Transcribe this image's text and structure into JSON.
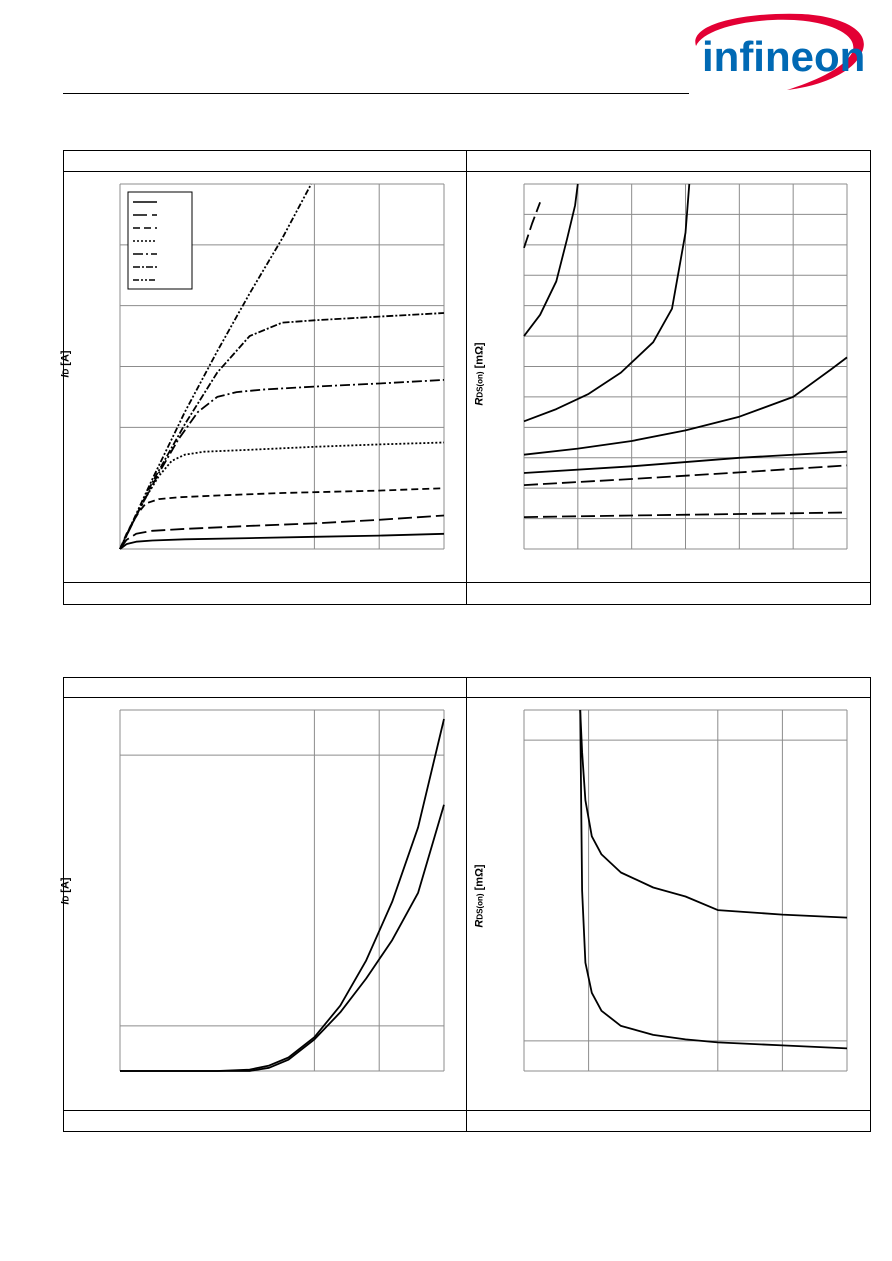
{
  "header": {
    "logo_text": "infineon",
    "brand_red": "#e30034",
    "brand_blue": "#0069b4"
  },
  "chart_data": [
    {
      "id": "top-left",
      "type": "line",
      "ylabel_symbol": "I",
      "ylabel_sub": "D",
      "ylabel_unit": "[A]",
      "xlim": [
        0,
        5
      ],
      "ylim": [
        0,
        6
      ],
      "x_grid": [
        0,
        3,
        4,
        5
      ],
      "y_grid": [
        0,
        2,
        3,
        4,
        5,
        6
      ],
      "legend": "top-left",
      "legend_entries": 7,
      "series": [
        {
          "dash": "solid",
          "x": [
            0,
            0.1,
            0.25,
            0.5,
            1,
            2,
            3,
            4,
            5
          ],
          "y": [
            0,
            0.08,
            0.12,
            0.14,
            0.16,
            0.18,
            0.2,
            0.22,
            0.25
          ]
        },
        {
          "dash": "long",
          "x": [
            0,
            0.1,
            0.25,
            0.5,
            1,
            2,
            3,
            4,
            5
          ],
          "y": [
            0,
            0.15,
            0.25,
            0.3,
            0.33,
            0.38,
            0.42,
            0.48,
            0.55
          ]
        },
        {
          "dash": "medium",
          "x": [
            0,
            0.1,
            0.2,
            0.3,
            0.4,
            0.6,
            0.9,
            1.5,
            2.5,
            4,
            5
          ],
          "y": [
            0,
            0.25,
            0.45,
            0.62,
            0.75,
            0.82,
            0.85,
            0.88,
            0.92,
            0.96,
            1.0
          ]
        },
        {
          "dash": "dotted",
          "x": [
            0,
            0.2,
            0.4,
            0.6,
            0.8,
            1.0,
            1.3,
            2,
            3,
            4,
            5
          ],
          "y": [
            0,
            0.45,
            0.85,
            1.2,
            1.45,
            1.55,
            1.6,
            1.63,
            1.68,
            1.72,
            1.75
          ]
        },
        {
          "dash": "dash-dot",
          "x": [
            0,
            0.3,
            0.6,
            0.9,
            1.2,
            1.5,
            1.8,
            2.2,
            3,
            4,
            5
          ],
          "y": [
            0,
            0.65,
            1.25,
            1.8,
            2.25,
            2.5,
            2.58,
            2.62,
            2.67,
            2.72,
            2.78
          ]
        },
        {
          "dash": "dash-dot-fine",
          "x": [
            0,
            0.5,
            1.0,
            1.5,
            2.0,
            2.5,
            3.0,
            4.0,
            5.0
          ],
          "y": [
            0,
            1.1,
            2.05,
            2.9,
            3.5,
            3.72,
            3.76,
            3.82,
            3.88
          ]
        },
        {
          "dash": "dash-dot-dot",
          "x": [
            0,
            0.5,
            1.0,
            1.5,
            2.0,
            2.5,
            2.95
          ],
          "y": [
            0,
            1.15,
            2.25,
            3.25,
            4.2,
            5.1,
            6.0
          ]
        }
      ]
    },
    {
      "id": "top-right",
      "type": "line",
      "ylabel_symbol": "R",
      "ylabel_sub": "DS(on)",
      "ylabel_unit": "[mΩ]",
      "xlim": [
        0,
        6
      ],
      "ylim": [
        0,
        12
      ],
      "x_grid": [
        0,
        1,
        2,
        3,
        4,
        5,
        6
      ],
      "y_grid": [
        0,
        1,
        2,
        3,
        4,
        5,
        6,
        7,
        8,
        9,
        10,
        11,
        12
      ],
      "series": [
        {
          "dash": "long",
          "x": [
            0,
            0.15,
            0.3
          ],
          "y": [
            9.9,
            10.7,
            11.4
          ]
        },
        {
          "dash": "solid",
          "x": [
            0,
            0.3,
            0.6,
            0.8,
            0.95,
            1.0
          ],
          "y": [
            7.0,
            7.7,
            8.8,
            10.2,
            11.3,
            12.0
          ]
        },
        {
          "dash": "solid",
          "x": [
            0,
            0.6,
            1.2,
            1.8,
            2.4,
            2.75,
            3.0,
            3.07
          ],
          "y": [
            4.2,
            4.6,
            5.1,
            5.8,
            6.8,
            7.9,
            10.4,
            12.0
          ]
        },
        {
          "dash": "solid",
          "x": [
            0,
            1,
            2,
            3,
            4,
            5,
            5.7,
            6.0
          ],
          "y": [
            3.1,
            3.3,
            3.55,
            3.9,
            4.35,
            5.0,
            5.9,
            6.3
          ]
        },
        {
          "dash": "solid",
          "x": [
            0,
            2,
            4,
            6
          ],
          "y": [
            2.5,
            2.72,
            3.0,
            3.2
          ]
        },
        {
          "dash": "long",
          "x": [
            0,
            2,
            4,
            6
          ],
          "y": [
            2.1,
            2.3,
            2.52,
            2.75
          ]
        },
        {
          "dash": "long",
          "x": [
            0,
            2,
            4,
            6
          ],
          "y": [
            1.05,
            1.1,
            1.15,
            1.2
          ]
        }
      ]
    },
    {
      "id": "bottom-left",
      "type": "line",
      "ylabel_symbol": "I",
      "ylabel_sub": "D",
      "ylabel_unit": "[A]",
      "xlim": [
        0,
        5
      ],
      "ylim": [
        0,
        8
      ],
      "x_grid": [
        0,
        3,
        4,
        5
      ],
      "y_grid": [
        0,
        1,
        7,
        8
      ],
      "series": [
        {
          "dash": "solid",
          "x": [
            0,
            1.5,
            2.0,
            2.3,
            2.6,
            3.0,
            3.4,
            3.8,
            4.2,
            4.6,
            5.0
          ],
          "y": [
            0,
            0,
            0.03,
            0.12,
            0.3,
            0.75,
            1.45,
            2.45,
            3.75,
            5.4,
            7.8
          ]
        },
        {
          "dash": "solid",
          "x": [
            0,
            1.5,
            2.0,
            2.3,
            2.6,
            3.0,
            3.4,
            3.8,
            4.2,
            4.6,
            5.0
          ],
          "y": [
            0,
            0,
            0.0,
            0.07,
            0.25,
            0.7,
            1.3,
            2.05,
            2.9,
            3.95,
            5.9
          ]
        }
      ]
    },
    {
      "id": "bottom-right",
      "type": "line",
      "ylabel_symbol": "R",
      "ylabel_sub": "DS(on)",
      "ylabel_unit": "[mΩ]",
      "xlim": [
        0,
        5
      ],
      "ylim": [
        0,
        12
      ],
      "x_grid": [
        0,
        1,
        3,
        4,
        5
      ],
      "y_grid": [
        0,
        1,
        11,
        12
      ],
      "series": [
        {
          "dash": "solid",
          "x": [
            0.87,
            0.9,
            0.95,
            1.05,
            1.2,
            1.5,
            2.0,
            2.5,
            3.0,
            4.0,
            5.0
          ],
          "y": [
            12.0,
            10.6,
            9.0,
            7.8,
            7.2,
            6.6,
            6.1,
            5.8,
            5.35,
            5.2,
            5.1
          ]
        },
        {
          "dash": "solid",
          "x": [
            0.87,
            0.9,
            0.95,
            1.05,
            1.2,
            1.5,
            2.0,
            2.5,
            3.0,
            4.0,
            5.0
          ],
          "y": [
            12.0,
            6.0,
            3.6,
            2.6,
            2.0,
            1.5,
            1.2,
            1.05,
            0.95,
            0.85,
            0.75
          ]
        }
      ]
    }
  ]
}
